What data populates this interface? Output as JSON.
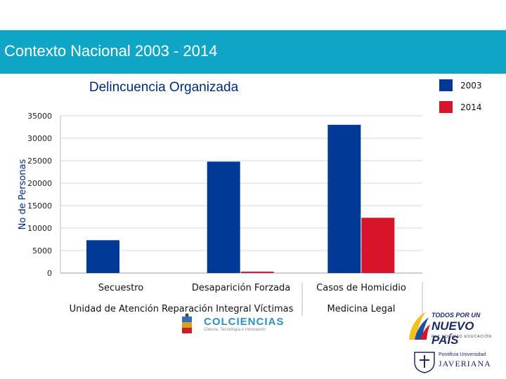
{
  "header": {
    "title": "Contexto Nacional 2003 - 2014"
  },
  "chart_data": {
    "type": "bar",
    "title": "Delincuencia Organizada",
    "ylabel": "No de Personas",
    "xlabel": "",
    "ylim": [
      0,
      35000
    ],
    "yticks": [
      0,
      5000,
      10000,
      15000,
      20000,
      25000,
      30000,
      35000
    ],
    "categories": [
      "Secuestro",
      "Desaparición Forzada",
      "Casos de Homicidio"
    ],
    "series": [
      {
        "name": "2003",
        "color": "#003a96",
        "values": [
          7300,
          24800,
          33000
        ]
      },
      {
        "name": "2014",
        "color": "#d6142a",
        "values": [
          0,
          300,
          12300
        ]
      }
    ],
    "sources": [
      "Unidad de Atención Reparación Integral Víctimas",
      "Medicina Legal"
    ],
    "legend_position": "top-right",
    "grid": true
  },
  "logos": {
    "colciencias": {
      "name": "COLCIENCIAS",
      "tagline": "Ciencia, Tecnología e Innovación"
    },
    "nuevo_pais": {
      "line1": "TODOS POR UN",
      "line2": "NUEVO PAÍS",
      "line3": "PAZ   EQUIDAD   EDUCACIÓN"
    },
    "javeriana": {
      "line1": "Pontificia Universidad",
      "line2": "JAVERIANA"
    }
  },
  "colors": {
    "band": "#11a6c6",
    "series_2003": "#003a96",
    "series_2014": "#d6142a",
    "grid": "#d9d9d9"
  }
}
